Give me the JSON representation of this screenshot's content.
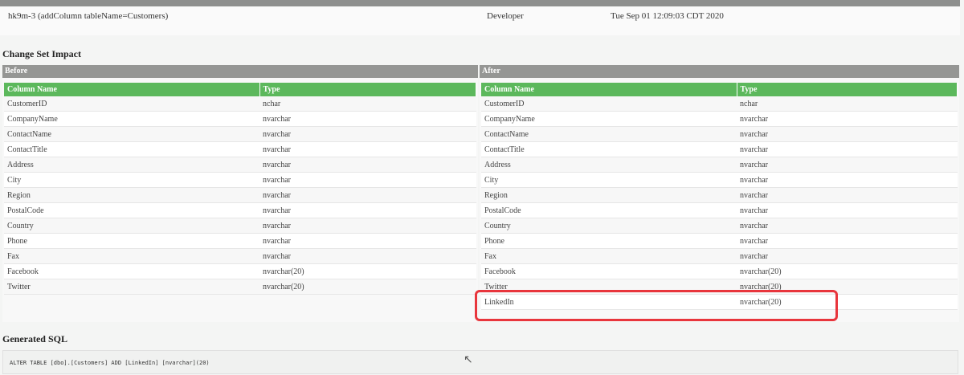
{
  "changeset": {
    "id": "hk9m-3 (addColumn tableName=Customers)",
    "author": "Developer",
    "date": "Tue Sep 01 12:09:03 CDT 2020"
  },
  "impact": {
    "title": "Change Set Impact",
    "before_label": "Before",
    "after_label": "After",
    "col_name": "Column Name",
    "col_type": "Type",
    "before": [
      [
        "CustomerID",
        "nchar"
      ],
      [
        "CompanyName",
        "nvarchar"
      ],
      [
        "ContactName",
        "nvarchar"
      ],
      [
        "ContactTitle",
        "nvarchar"
      ],
      [
        "Address",
        "nvarchar"
      ],
      [
        "City",
        "nvarchar"
      ],
      [
        "Region",
        "nvarchar"
      ],
      [
        "PostalCode",
        "nvarchar"
      ],
      [
        "Country",
        "nvarchar"
      ],
      [
        "Phone",
        "nvarchar"
      ],
      [
        "Fax",
        "nvarchar"
      ],
      [
        "Facebook",
        "nvarchar(20)"
      ],
      [
        "Twitter",
        "nvarchar(20)"
      ]
    ],
    "after": [
      [
        "CustomerID",
        "nchar"
      ],
      [
        "CompanyName",
        "nvarchar"
      ],
      [
        "ContactName",
        "nvarchar"
      ],
      [
        "ContactTitle",
        "nvarchar"
      ],
      [
        "Address",
        "nvarchar"
      ],
      [
        "City",
        "nvarchar"
      ],
      [
        "Region",
        "nvarchar"
      ],
      [
        "PostalCode",
        "nvarchar"
      ],
      [
        "Country",
        "nvarchar"
      ],
      [
        "Phone",
        "nvarchar"
      ],
      [
        "Fax",
        "nvarchar"
      ],
      [
        "Facebook",
        "nvarchar(20)"
      ],
      [
        "Twitter",
        "nvarchar(20)"
      ],
      [
        "LinkedIn",
        "nvarchar(20)"
      ]
    ]
  },
  "sql": {
    "title": "Generated SQL",
    "statement": "ALTER TABLE [dbo].[Customers] ADD [LinkedIn] [nvarchar](20)"
  },
  "colors": {
    "header_green": "#5cb85c",
    "highlight_red": "#e8353c"
  }
}
